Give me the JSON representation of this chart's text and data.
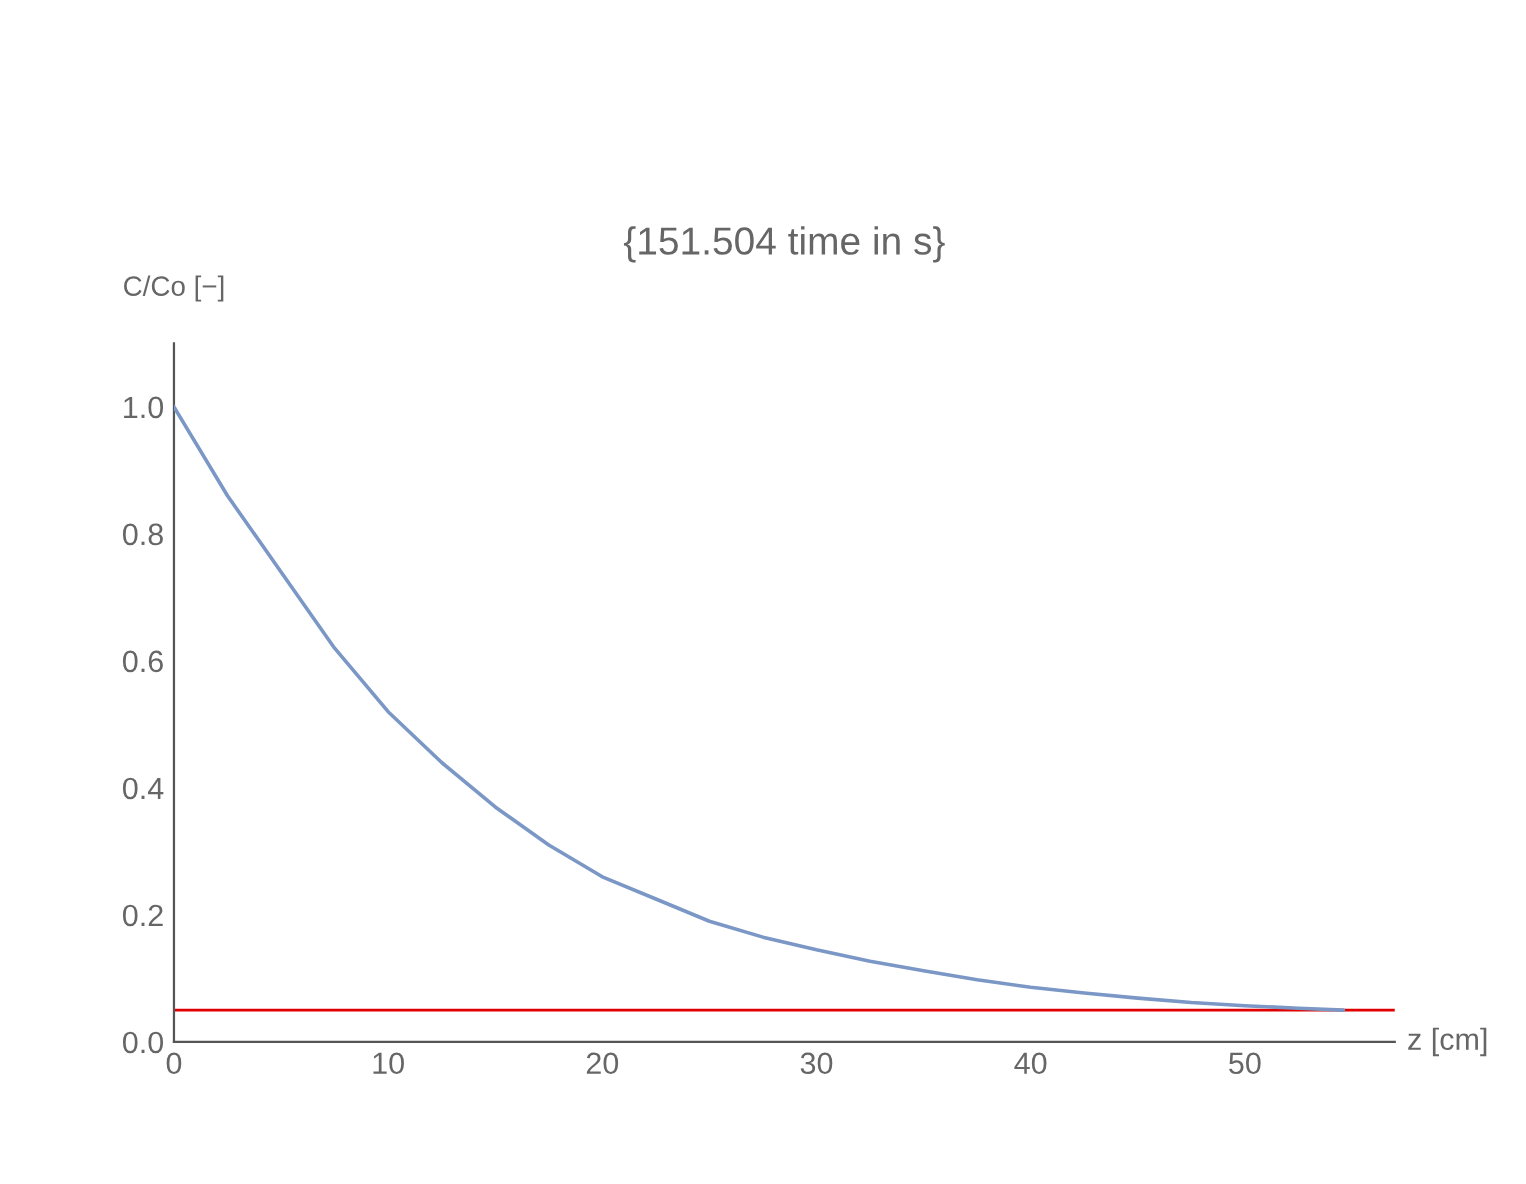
{
  "chart_data": {
    "type": "line",
    "title": "{151.504 time in s}",
    "xlabel": "z [cm]",
    "ylabel": "C/Co [−]",
    "x": [
      0,
      2.5,
      5,
      7.5,
      10,
      12.5,
      15,
      17.5,
      20,
      22.5,
      25,
      27.5,
      30,
      32.5,
      35,
      37.5,
      40,
      42.5,
      45,
      47.5,
      50,
      52.5,
      54.6
    ],
    "series": [
      {
        "color": "#7b97c6",
        "values": [
          1.0,
          0.86,
          0.74,
          0.62,
          0.52,
          0.44,
          0.37,
          0.31,
          0.26,
          0.225,
          0.19,
          0.165,
          0.145,
          0.127,
          0.112,
          0.098,
          0.086,
          0.077,
          0.069,
          0.062,
          0.057,
          0.053,
          0.05
        ]
      }
    ],
    "ref_lines": [
      {
        "axis": "y",
        "value": 0.05,
        "color": "#e00000"
      }
    ],
    "xlim": [
      0,
      57
    ],
    "ylim": [
      0,
      1.1
    ],
    "xticks": [
      0,
      10,
      20,
      30,
      40,
      50
    ],
    "yticks": [
      {
        "value": 0,
        "label": "0.0"
      },
      0.2,
      0.4,
      0.6,
      0.8,
      {
        "value": 1,
        "label": "1.0"
      }
    ],
    "grid": false,
    "legend": false,
    "marker": "none",
    "line_style": "solid"
  }
}
